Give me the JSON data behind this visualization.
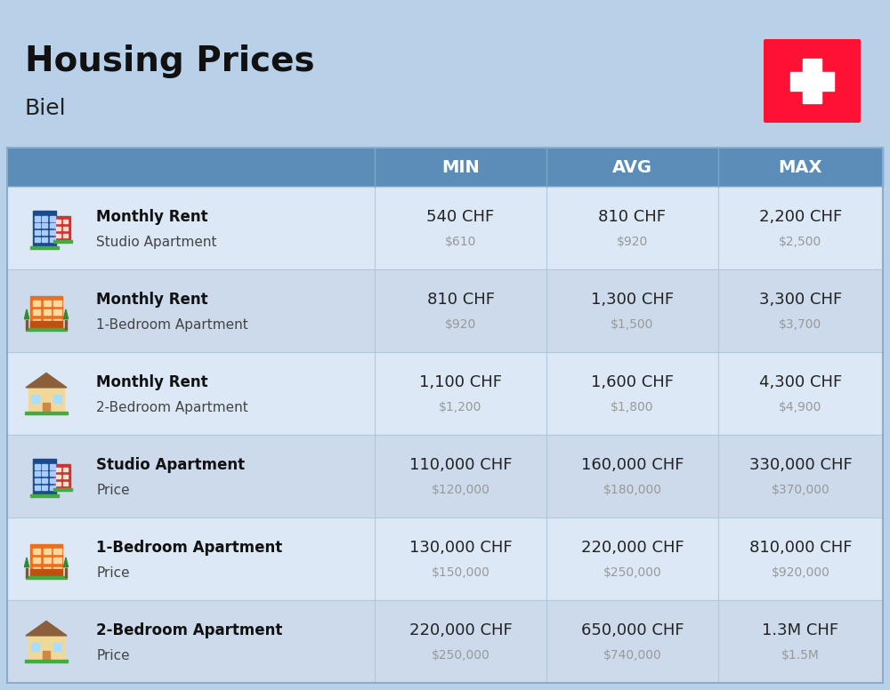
{
  "title": "Housing Prices",
  "subtitle": "Biel",
  "background_color": "#b8d0e8",
  "header_bg_color": "#5b8db8",
  "header_text_color": "#ffffff",
  "row_colors": [
    "#dce8f5",
    "#ccdaeb"
  ],
  "col_headers": [
    "MIN",
    "AVG",
    "MAX"
  ],
  "rows": [
    {
      "bold_label": "Monthly Rent",
      "sub_label": "Studio Apartment",
      "min_chf": "540 CHF",
      "min_usd": "$610",
      "avg_chf": "810 CHF",
      "avg_usd": "$920",
      "max_chf": "2,200 CHF",
      "max_usd": "$2,500",
      "icon_type": "studio_blue"
    },
    {
      "bold_label": "Monthly Rent",
      "sub_label": "1-Bedroom Apartment",
      "min_chf": "810 CHF",
      "min_usd": "$920",
      "avg_chf": "1,300 CHF",
      "avg_usd": "$1,500",
      "max_chf": "3,300 CHF",
      "max_usd": "$3,700",
      "icon_type": "one_bed_orange"
    },
    {
      "bold_label": "Monthly Rent",
      "sub_label": "2-Bedroom Apartment",
      "min_chf": "1,100 CHF",
      "min_usd": "$1,200",
      "avg_chf": "1,600 CHF",
      "avg_usd": "$1,800",
      "max_chf": "4,300 CHF",
      "max_usd": "$4,900",
      "icon_type": "two_bed_tan"
    },
    {
      "bold_label": "Studio Apartment",
      "sub_label": "Price",
      "min_chf": "110,000 CHF",
      "min_usd": "$120,000",
      "avg_chf": "160,000 CHF",
      "avg_usd": "$180,000",
      "max_chf": "330,000 CHF",
      "max_usd": "$370,000",
      "icon_type": "studio_blue"
    },
    {
      "bold_label": "1-Bedroom Apartment",
      "sub_label": "Price",
      "min_chf": "130,000 CHF",
      "min_usd": "$150,000",
      "avg_chf": "220,000 CHF",
      "avg_usd": "$250,000",
      "max_chf": "810,000 CHF",
      "max_usd": "$920,000",
      "icon_type": "one_bed_orange"
    },
    {
      "bold_label": "2-Bedroom Apartment",
      "sub_label": "Price",
      "min_chf": "220,000 CHF",
      "min_usd": "$250,000",
      "avg_chf": "650,000 CHF",
      "avg_usd": "$740,000",
      "max_chf": "1.3M CHF",
      "max_usd": "$1.5M",
      "icon_type": "two_bed_tan"
    }
  ],
  "flag_red": "#ff1133",
  "flag_cross": "#ffffff",
  "usd_color": "#999999",
  "chf_color": "#222222",
  "label_bold_color": "#111111",
  "label_sub_color": "#444444",
  "title_fontsize": 28,
  "subtitle_fontsize": 18,
  "header_fontsize": 14,
  "chf_fontsize": 13,
  "usd_fontsize": 10,
  "label_bold_fontsize": 12,
  "label_sub_fontsize": 11
}
